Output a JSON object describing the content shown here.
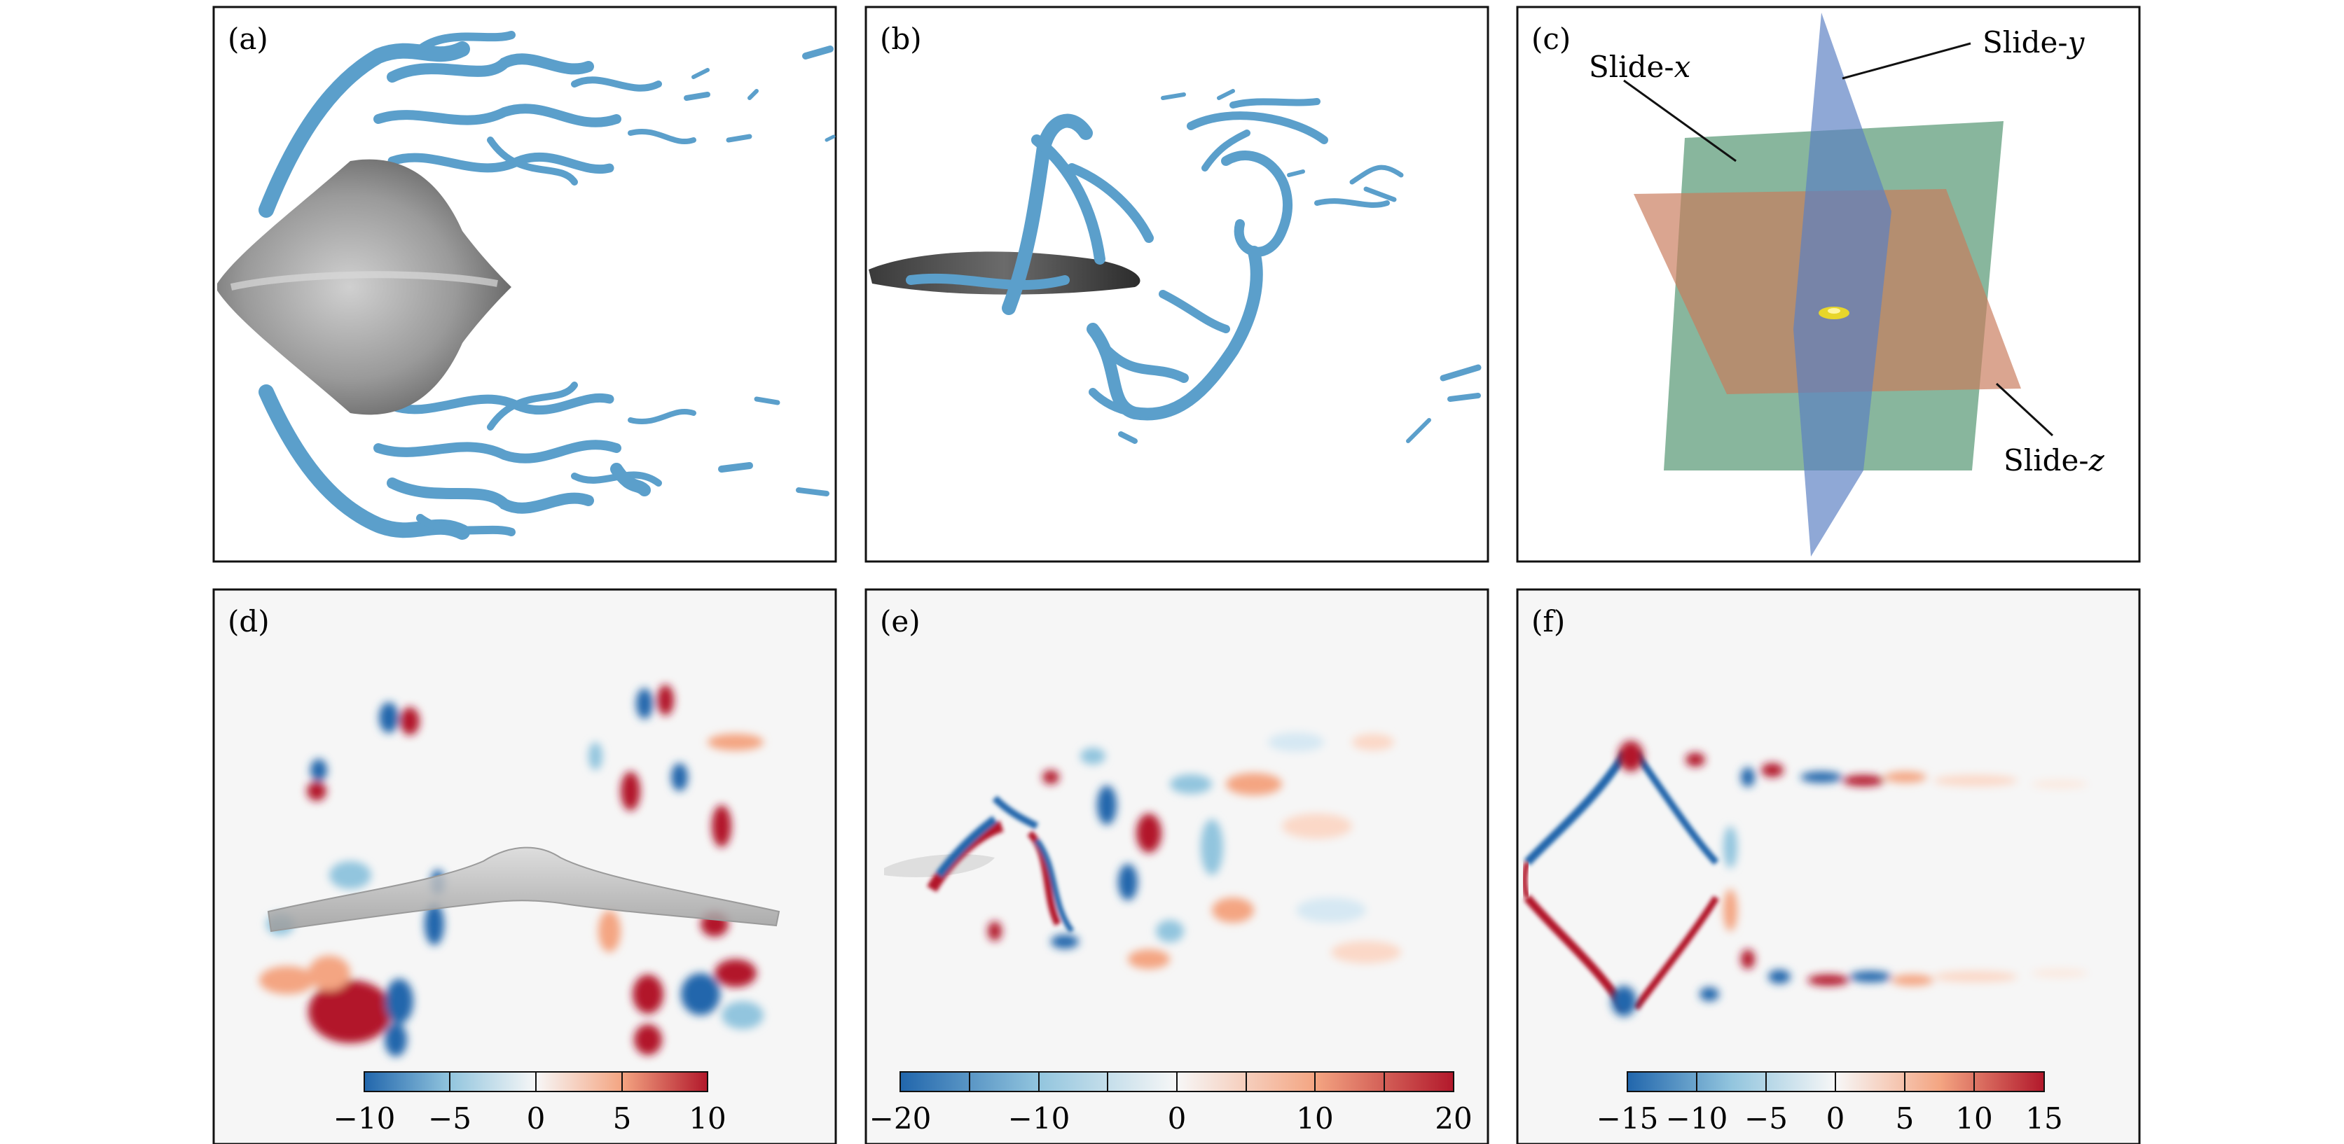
{
  "panels": [
    {
      "id": "a",
      "label": "(a)"
    },
    {
      "id": "b",
      "label": "(b)"
    },
    {
      "id": "c",
      "label": "(c)",
      "annotations": [
        {
          "prefix": "Slide-",
          "axis": "x"
        },
        {
          "prefix": "Slide-",
          "axis": "y"
        },
        {
          "prefix": "Slide-",
          "axis": "z"
        }
      ],
      "colors": {
        "slide_x": "#5a9a77",
        "slide_y": "#5a7fc2",
        "slide_z": "#c97a5c",
        "core": "#e8d62a"
      }
    },
    {
      "id": "d",
      "label": "(d)",
      "colorbar": {
        "min": -10,
        "max": 10,
        "ticks": [
          "−10",
          "−5",
          "0",
          "5",
          "10"
        ]
      }
    },
    {
      "id": "e",
      "label": "(e)",
      "colorbar": {
        "min": -20,
        "max": 20,
        "ticks": [
          "−20",
          "−10",
          "0",
          "10",
          "20"
        ]
      }
    },
    {
      "id": "f",
      "label": "(f)",
      "colorbar": {
        "min": -15,
        "max": 15,
        "ticks": [
          "−15",
          "−10",
          "−5",
          "0",
          "5",
          "10",
          "15"
        ]
      }
    }
  ],
  "colormap": {
    "negative": "#2166ac",
    "zero": "#f7f7f7",
    "positive": "#b2182b"
  },
  "surface_colors": {
    "vortex": "#5b9fcb",
    "body": "#8a8a8a",
    "background": "#f6f6f6"
  }
}
